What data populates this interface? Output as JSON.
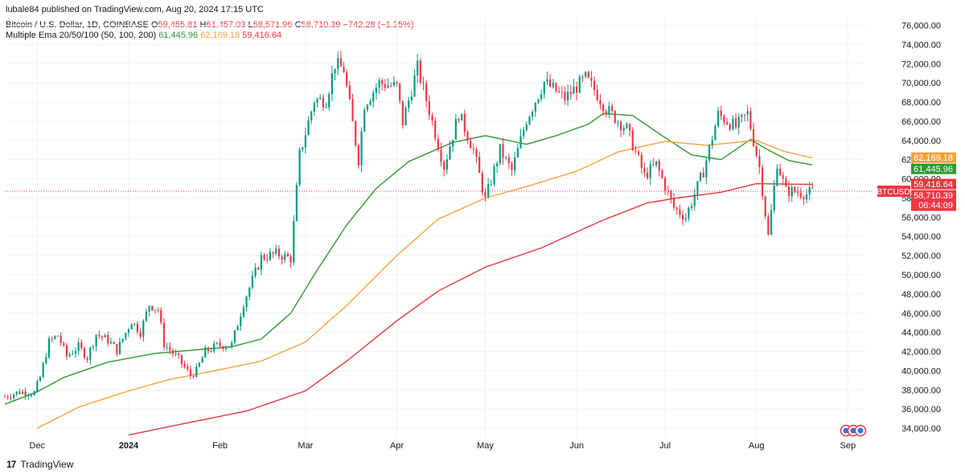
{
  "header": {
    "publisher": "lubale84 published on TradingView.com, Aug 20, 2024 17:15 UTC",
    "symbol": "Bitcoin / U.S. Dollar, 1D, COINBASE",
    "ohlc": {
      "o_label": "O",
      "o": "59,455.81",
      "h_label": "H",
      "h": "61,457.03",
      "l_label": "L",
      "l": "58,571.96",
      "c_label": "C",
      "c": "58,710.39",
      "change": "−742.28 (−1.25%)"
    },
    "indicator": {
      "name": "Multiple Ema 20/50/100 (50, 100, 200)",
      "ema50": "61,445.96",
      "ema100": "62,169.18",
      "ema200": "59,416.64"
    }
  },
  "colors": {
    "up": "#089981",
    "down": "#f23645",
    "ema50": "#2e9a2e",
    "ema100": "#f7a13a",
    "ema200": "#e8363c",
    "grid": "#f0f3fa",
    "axis_text": "#131722"
  },
  "footer": {
    "brand": "TradingView"
  },
  "chart_data": {
    "type": "candlestick",
    "title": "Bitcoin / U.S. Dollar, 1D, COINBASE",
    "x_ticks": [
      "Dec",
      "2024",
      "Feb",
      "Mar",
      "Apr",
      "May",
      "Jun",
      "Jul",
      "Aug",
      "Sep"
    ],
    "y_ticks": [
      "76,000.00",
      "74,000.00",
      "72,000.00",
      "70,000.00",
      "68,000.00",
      "66,000.00",
      "64,000.00",
      "62,000.00",
      "60,000.00",
      "58,000.00",
      "56,000.00",
      "54,000.00",
      "52,000.00",
      "50,000.00",
      "48,000.00",
      "46,000.00",
      "44,000.00",
      "42,000.00",
      "40,000.00",
      "38,000.00",
      "36,000.00",
      "34,000.00"
    ],
    "ylim": [
      33000,
      76800
    ],
    "x_range": [
      "2023-11-20",
      "2024-09-08"
    ],
    "price_labels": [
      {
        "text": "62,169.18",
        "value": 62169.18,
        "color": "#f7a13a"
      },
      {
        "text": "61,445.96",
        "value": 61445.96,
        "color": "#2e9a2e"
      },
      {
        "text": "59,416.64",
        "value": 59416.64,
        "color": "#e8363c"
      },
      {
        "text": "58,710.39",
        "value": 58710.39,
        "color": "#f23645",
        "sub": "06:44:09",
        "tag": "BTCUSD"
      }
    ],
    "ema_series": [
      {
        "name": "EMA 50",
        "color": "#2e9a2e",
        "points": [
          [
            "2023-11-20",
            36500
          ],
          [
            "2023-12-01",
            37800
          ],
          [
            "2023-12-10",
            39300
          ],
          [
            "2023-12-25",
            40900
          ],
          [
            "2024-01-10",
            41800
          ],
          [
            "2024-01-25",
            42200
          ],
          [
            "2024-02-05",
            42500
          ],
          [
            "2024-02-15",
            43300
          ],
          [
            "2024-02-25",
            46000
          ],
          [
            "2024-03-05",
            50500
          ],
          [
            "2024-03-15",
            55200
          ],
          [
            "2024-03-25",
            59000
          ],
          [
            "2024-04-05",
            61800
          ],
          [
            "2024-04-20",
            63800
          ],
          [
            "2024-05-01",
            64500
          ],
          [
            "2024-05-15",
            63600
          ],
          [
            "2024-05-25",
            64500
          ],
          [
            "2024-06-05",
            65700
          ],
          [
            "2024-06-10",
            66800
          ],
          [
            "2024-06-20",
            66600
          ],
          [
            "2024-06-30",
            64500
          ],
          [
            "2024-07-10",
            62500
          ],
          [
            "2024-07-20",
            62000
          ],
          [
            "2024-07-30",
            64100
          ],
          [
            "2024-08-05",
            63000
          ],
          [
            "2024-08-12",
            61900
          ],
          [
            "2024-08-20",
            61446
          ]
        ]
      },
      {
        "name": "EMA 100",
        "color": "#f7a13a",
        "points": [
          [
            "2023-12-01",
            34000
          ],
          [
            "2023-12-15",
            36200
          ],
          [
            "2024-01-01",
            37900
          ],
          [
            "2024-01-15",
            39100
          ],
          [
            "2024-02-01",
            40100
          ],
          [
            "2024-02-15",
            41000
          ],
          [
            "2024-03-01",
            43000
          ],
          [
            "2024-03-15",
            46800
          ],
          [
            "2024-04-01",
            52000
          ],
          [
            "2024-04-15",
            55800
          ],
          [
            "2024-05-01",
            58000
          ],
          [
            "2024-05-15",
            59200
          ],
          [
            "2024-06-01",
            60800
          ],
          [
            "2024-06-15",
            62800
          ],
          [
            "2024-07-01",
            63900
          ],
          [
            "2024-07-15",
            63500
          ],
          [
            "2024-08-01",
            64000
          ],
          [
            "2024-08-10",
            62900
          ],
          [
            "2024-08-20",
            62169
          ]
        ]
      },
      {
        "name": "EMA 200",
        "color": "#e8363c",
        "points": [
          [
            "2024-01-01",
            33300
          ],
          [
            "2024-01-20",
            34500
          ],
          [
            "2024-02-10",
            35800
          ],
          [
            "2024-03-01",
            37900
          ],
          [
            "2024-03-15",
            41000
          ],
          [
            "2024-04-01",
            45200
          ],
          [
            "2024-04-15",
            48300
          ],
          [
            "2024-05-01",
            50800
          ],
          [
            "2024-05-20",
            52800
          ],
          [
            "2024-06-10",
            55700
          ],
          [
            "2024-06-25",
            57500
          ],
          [
            "2024-07-05",
            58000
          ],
          [
            "2024-07-20",
            58600
          ],
          [
            "2024-08-01",
            59500
          ],
          [
            "2024-08-20",
            59417
          ]
        ]
      }
    ],
    "price_path": [
      [
        "2023-11-20",
        37300
      ],
      [
        "2023-11-25",
        37800
      ],
      [
        "2023-11-30",
        37700
      ],
      [
        "2023-12-02",
        39300
      ],
      [
        "2023-12-05",
        43000
      ],
      [
        "2023-12-08",
        43700
      ],
      [
        "2023-12-11",
        41500
      ],
      [
        "2023-12-15",
        42500
      ],
      [
        "2023-12-18",
        41400
      ],
      [
        "2023-12-21",
        43800
      ],
      [
        "2023-12-25",
        43200
      ],
      [
        "2023-12-28",
        42100
      ],
      [
        "2024-01-02",
        45200
      ],
      [
        "2024-01-05",
        44000
      ],
      [
        "2024-01-08",
        46900
      ],
      [
        "2024-01-11",
        46400
      ],
      [
        "2024-01-13",
        42800
      ],
      [
        "2024-01-18",
        41200
      ],
      [
        "2024-01-22",
        39500
      ],
      [
        "2024-01-24",
        40000
      ],
      [
        "2024-01-27",
        42000
      ],
      [
        "2024-01-31",
        42600
      ],
      [
        "2024-02-05",
        42700
      ],
      [
        "2024-02-09",
        47100
      ],
      [
        "2024-02-15",
        51800
      ],
      [
        "2024-02-20",
        52200
      ],
      [
        "2024-02-25",
        51700
      ],
      [
        "2024-02-28",
        62500
      ],
      [
        "2024-03-04",
        68200
      ],
      [
        "2024-03-08",
        68200
      ],
      [
        "2024-03-11",
        72000
      ],
      [
        "2024-03-14",
        71400
      ],
      [
        "2024-03-19",
        62000
      ],
      [
        "2024-03-21",
        67800
      ],
      [
        "2024-03-26",
        70000
      ],
      [
        "2024-04-01",
        69600
      ],
      [
        "2024-04-03",
        65900
      ],
      [
        "2024-04-08",
        71600
      ],
      [
        "2024-04-12",
        67100
      ],
      [
        "2024-04-17",
        61300
      ],
      [
        "2024-04-22",
        66800
      ],
      [
        "2024-04-27",
        63000
      ],
      [
        "2024-05-01",
        57800
      ],
      [
        "2024-05-06",
        63000
      ],
      [
        "2024-05-10",
        60800
      ],
      [
        "2024-05-15",
        66200
      ],
      [
        "2024-05-21",
        70100
      ],
      [
        "2024-05-28",
        68400
      ],
      [
        "2024-06-04",
        70500
      ],
      [
        "2024-06-07",
        69300
      ],
      [
        "2024-06-11",
        67300
      ],
      [
        "2024-06-18",
        65200
      ],
      [
        "2024-06-24",
        60300
      ],
      [
        "2024-06-28",
        61500
      ],
      [
        "2024-07-04",
        57000
      ],
      [
        "2024-07-08",
        56000
      ],
      [
        "2024-07-14",
        60800
      ],
      [
        "2024-07-19",
        66700
      ],
      [
        "2024-07-25",
        65400
      ],
      [
        "2024-07-29",
        66800
      ],
      [
        "2024-08-02",
        61200
      ],
      [
        "2024-08-05",
        54000
      ],
      [
        "2024-08-08",
        61700
      ],
      [
        "2024-08-11",
        58700
      ],
      [
        "2024-08-14",
        58700
      ],
      [
        "2024-08-18",
        58400
      ],
      [
        "2024-08-20",
        58710
      ]
    ]
  }
}
